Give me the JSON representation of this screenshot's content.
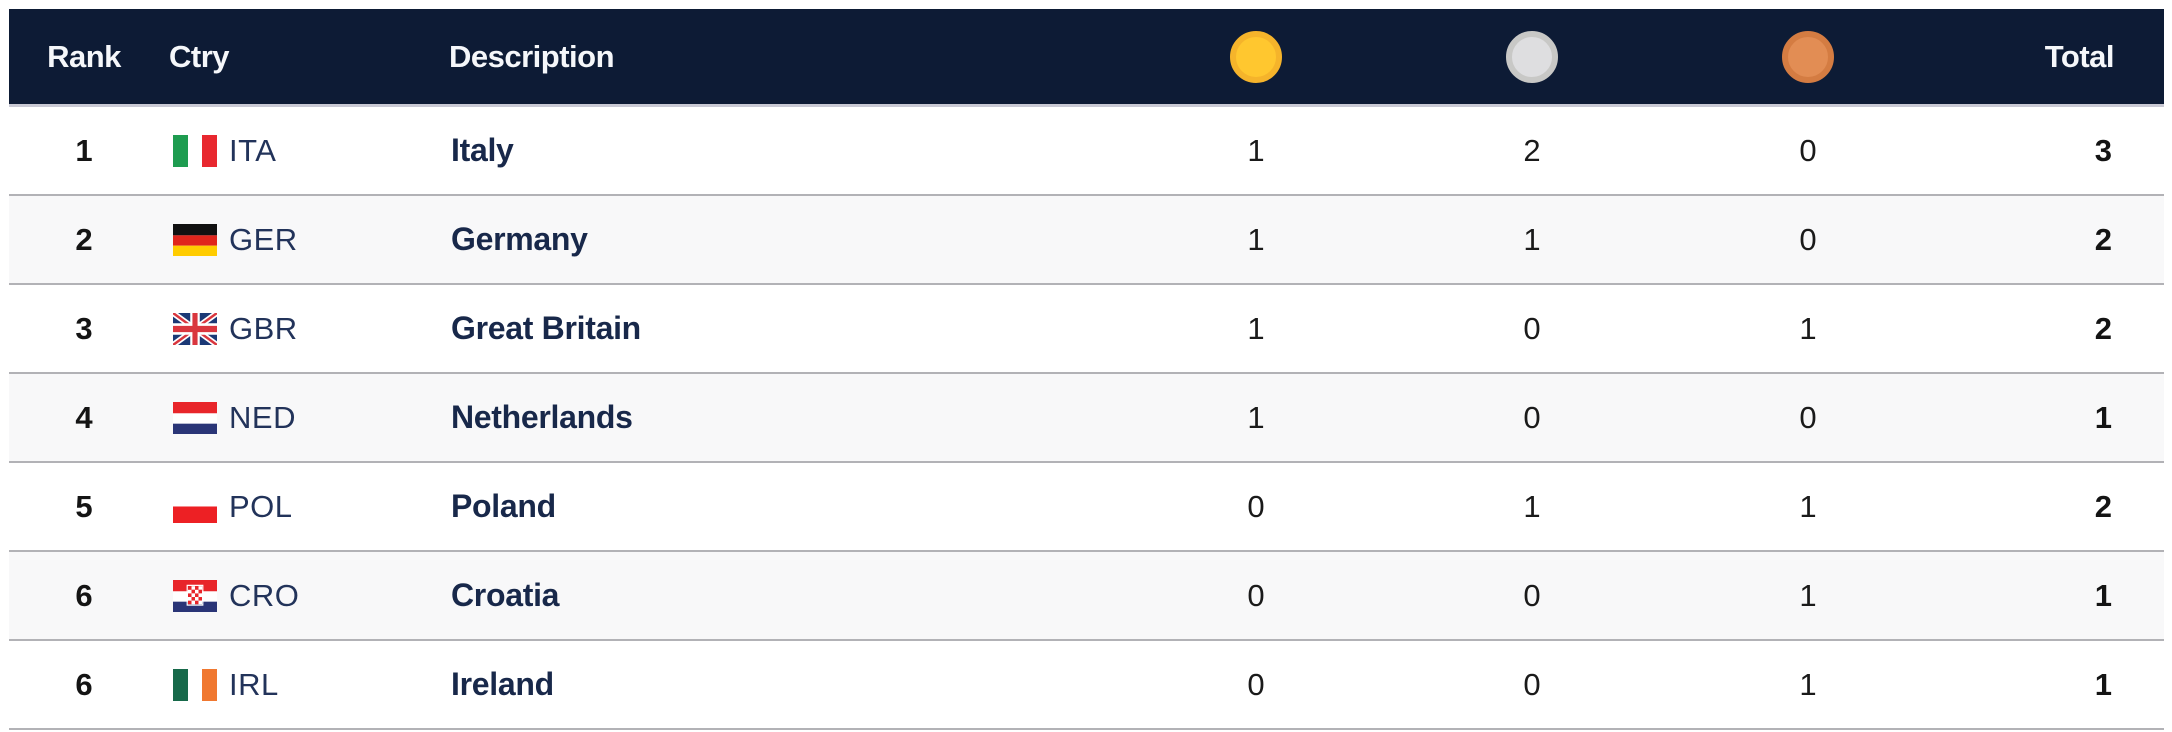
{
  "header": {
    "rank_label": "Rank",
    "ctry_label": "Ctry",
    "description_label": "Description",
    "total_label": "Total",
    "medal_columns": [
      {
        "name": "gold",
        "fill": "#FFC72F",
        "ring": "#F5B42B"
      },
      {
        "name": "silver",
        "fill": "#DEDEE0",
        "ring": "#C8C8C6"
      },
      {
        "name": "bronze",
        "fill": "#E28D54",
        "ring": "#D47C42"
      }
    ]
  },
  "colors": {
    "header_bg": "#0D1B35",
    "navy_text": "#18284A",
    "country_code_text": "#22335A",
    "row_alt_bg": "#F8F8F9",
    "row_border": "#B2B2B6",
    "header_border": "#C9C9D4"
  },
  "flags": {
    "ita": {
      "type": "vertical",
      "colors": [
        "#1E9C50",
        "#FFFFFF",
        "#E8282F"
      ]
    },
    "ger": {
      "type": "horizontal",
      "colors": [
        "#111111",
        "#E0251C",
        "#FFCC00"
      ]
    },
    "gbr": {
      "type": "union-jack",
      "colors": [
        "#1B3976",
        "#FFFFFF",
        "#D9363E"
      ]
    },
    "ned": {
      "type": "horizontal",
      "colors": [
        "#E8252A",
        "#FFFFFF",
        "#2A3577"
      ]
    },
    "pol": {
      "type": "bicolor-horizontal",
      "colors": [
        "#FFFFFF",
        "#ED2024"
      ]
    },
    "cro": {
      "type": "croatia",
      "colors": [
        "#E8252A",
        "#FFFFFF",
        "#2A3577"
      ]
    },
    "irl": {
      "type": "vertical",
      "colors": [
        "#17694A",
        "#FFFFFF",
        "#F07830"
      ]
    }
  },
  "rows": [
    {
      "rank": "1",
      "code": "ITA",
      "flag": "ita",
      "description": "Italy",
      "gold": "1",
      "silver": "2",
      "bronze": "0",
      "total": "3"
    },
    {
      "rank": "2",
      "code": "GER",
      "flag": "ger",
      "description": "Germany",
      "gold": "1",
      "silver": "1",
      "bronze": "0",
      "total": "2"
    },
    {
      "rank": "3",
      "code": "GBR",
      "flag": "gbr",
      "description": "Great Britain",
      "gold": "1",
      "silver": "0",
      "bronze": "1",
      "total": "2"
    },
    {
      "rank": "4",
      "code": "NED",
      "flag": "ned",
      "description": "Netherlands",
      "gold": "1",
      "silver": "0",
      "bronze": "0",
      "total": "1"
    },
    {
      "rank": "5",
      "code": "POL",
      "flag": "pol",
      "description": "Poland",
      "gold": "0",
      "silver": "1",
      "bronze": "1",
      "total": "2"
    },
    {
      "rank": "6",
      "code": "CRO",
      "flag": "cro",
      "description": "Croatia",
      "gold": "0",
      "silver": "0",
      "bronze": "1",
      "total": "1"
    },
    {
      "rank": "6",
      "code": "IRL",
      "flag": "irl",
      "description": "Ireland",
      "gold": "0",
      "silver": "0",
      "bronze": "1",
      "total": "1"
    }
  ]
}
